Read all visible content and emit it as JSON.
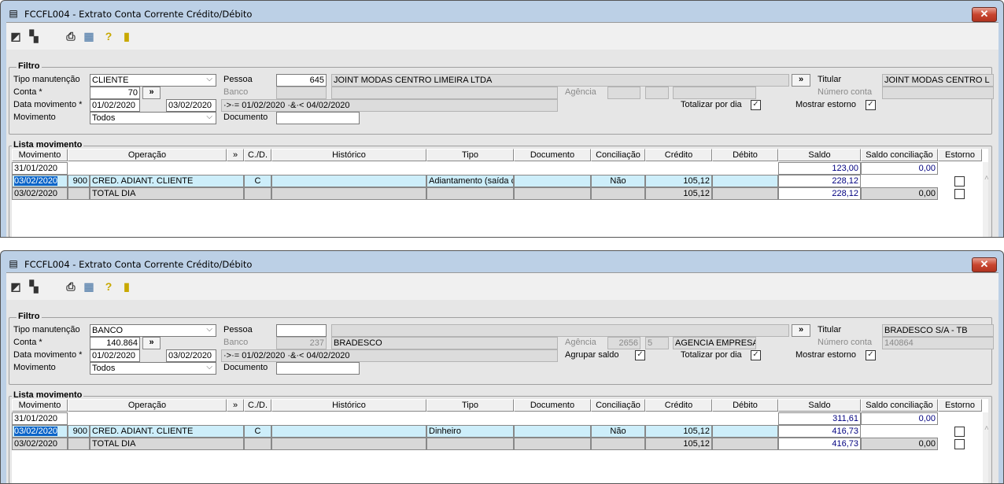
{
  "windows": [
    {
      "title": "FCCFL004 - Extrato Conta Corrente Crédito/Débito",
      "close_label": "✕",
      "toolbar": [
        "restore-icon",
        "cascade-icon",
        "printer-icon",
        "calendar-icon",
        "help-icon",
        "exit-door-icon"
      ],
      "filter": {
        "group_label": "Filtro",
        "tipo_label": "Tipo manutenção",
        "tipo_value": "CLIENTE",
        "conta_label": "Conta *",
        "conta_value": "70",
        "data_label": "Data movimento *",
        "data_from": "01/02/2020",
        "data_to": "03/02/2020",
        "data_expr": "·>·= 01/02/2020 ·&·< 04/02/2020",
        "movimento_label": "Movimento",
        "movimento_value": "Todos",
        "pessoa_label": "Pessoa",
        "pessoa_code": "645",
        "pessoa_name": "JOINT MODAS CENTRO LIMEIRA LTDA",
        "banco_label": "Banco",
        "banco_code": "",
        "banco_name": "",
        "agencia_label": "Agência",
        "agencia_code": "",
        "agencia_dv": "",
        "agencia_name": "",
        "titular_label": "Titular",
        "titular_value": "JOINT MODAS CENTRO L",
        "numero_conta_label": "Número conta",
        "numero_conta_value": "",
        "documento_label": "Documento",
        "documento_value": "",
        "agrupar_label": null,
        "agrupar_checked": null,
        "totalizar_label": "Totalizar por dia",
        "totalizar_checked": true,
        "estorno_label": "Mostrar estorno",
        "estorno_checked": true,
        "lookup_button": "»"
      },
      "list": {
        "group_label": "Lista movimento",
        "columns": [
          "Movimento",
          "Operação",
          "»",
          "C./D.",
          "Histórico",
          "Tipo",
          "Documento",
          "Conciliação",
          "Crédito",
          "Débito",
          "Saldo",
          "Saldo conciliação",
          "Estorno"
        ],
        "rows": [
          {
            "kind": "opening",
            "movimento": "31/01/2020",
            "saldo": "123,00",
            "saldo_conciliacao": "0,00"
          },
          {
            "kind": "item",
            "movimento": "03/02/2020",
            "op_code": "900",
            "operacao": "CRED. ADIANT. CLIENTE",
            "cd": "C",
            "historico": "",
            "tipo": "Adiantamento (saída c",
            "documento": "",
            "conciliacao": "Não",
            "credito": "105,12",
            "debito": "",
            "saldo": "228,12",
            "saldo_conciliacao": "",
            "estorno": false
          },
          {
            "kind": "total",
            "movimento": "03/02/2020",
            "op_code": "",
            "operacao": "TOTAL DIA",
            "cd": "",
            "historico": "",
            "tipo": "",
            "documento": "",
            "conciliacao": "",
            "credito": "105,12",
            "debito": "",
            "saldo": "228,12",
            "saldo_conciliacao": "0,00",
            "estorno": false
          }
        ]
      }
    },
    {
      "title": "FCCFL004 - Extrato Conta Corrente Crédito/Débito",
      "close_label": "✕",
      "toolbar": [
        "restore-icon",
        "cascade-icon",
        "printer-icon",
        "calendar-icon",
        "help-icon",
        "exit-door-icon"
      ],
      "filter": {
        "group_label": "Filtro",
        "tipo_label": "Tipo manutenção",
        "tipo_value": "BANCO",
        "conta_label": "Conta *",
        "conta_value": "140.864",
        "data_label": "Data movimento *",
        "data_from": "01/02/2020",
        "data_to": "03/02/2020",
        "data_expr": "·>·= 01/02/2020 ·&·< 04/02/2020",
        "movimento_label": "Movimento",
        "movimento_value": "Todos",
        "pessoa_label": "Pessoa",
        "pessoa_code": "",
        "pessoa_name": "",
        "banco_label": "Banco",
        "banco_code": "237",
        "banco_name": "BRADESCO",
        "agencia_label": "Agência",
        "agencia_code": "2656",
        "agencia_dv": "5",
        "agencia_name": "AGENCIA EMPRESAS BLUMENAU,U",
        "titular_label": "Titular",
        "titular_value": "BRADESCO S/A - TB",
        "numero_conta_label": "Número conta",
        "numero_conta_value": "140864",
        "documento_label": "Documento",
        "documento_value": "",
        "agrupar_label": "Agrupar saldo",
        "agrupar_checked": true,
        "totalizar_label": "Totalizar por dia",
        "totalizar_checked": true,
        "estorno_label": "Mostrar estorno",
        "estorno_checked": true,
        "lookup_button": "»"
      },
      "list": {
        "group_label": "Lista movimento",
        "columns": [
          "Movimento",
          "Operação",
          "»",
          "C./D.",
          "Histórico",
          "Tipo",
          "Documento",
          "Conciliação",
          "Crédito",
          "Débito",
          "Saldo",
          "Saldo conciliação",
          "Estorno"
        ],
        "rows": [
          {
            "kind": "opening",
            "movimento": "31/01/2020",
            "saldo": "311,61",
            "saldo_conciliacao": "0,00"
          },
          {
            "kind": "item",
            "movimento": "03/02/2020",
            "op_code": "900",
            "operacao": "CRED. ADIANT. CLIENTE",
            "cd": "C",
            "historico": "",
            "tipo": "Dinheiro",
            "documento": "",
            "conciliacao": "Não",
            "credito": "105,12",
            "debito": "",
            "saldo": "416,73",
            "saldo_conciliacao": "",
            "estorno": false
          },
          {
            "kind": "total",
            "movimento": "03/02/2020",
            "op_code": "",
            "operacao": "TOTAL DIA",
            "cd": "",
            "historico": "",
            "tipo": "",
            "documento": "",
            "conciliacao": "",
            "credito": "105,12",
            "debito": "",
            "saldo": "416,73",
            "saldo_conciliacao": "0,00",
            "estorno": false
          }
        ]
      }
    }
  ],
  "checkmark": "✓",
  "icon_glyphs": {
    "restore-icon": "◩",
    "cascade-icon": "▚",
    "printer-icon": "⎙",
    "calendar-icon": "▦",
    "help-icon": "?",
    "exit-door-icon": "▮",
    "document-icon": "▤",
    "scroll-up-icon": "˄"
  }
}
